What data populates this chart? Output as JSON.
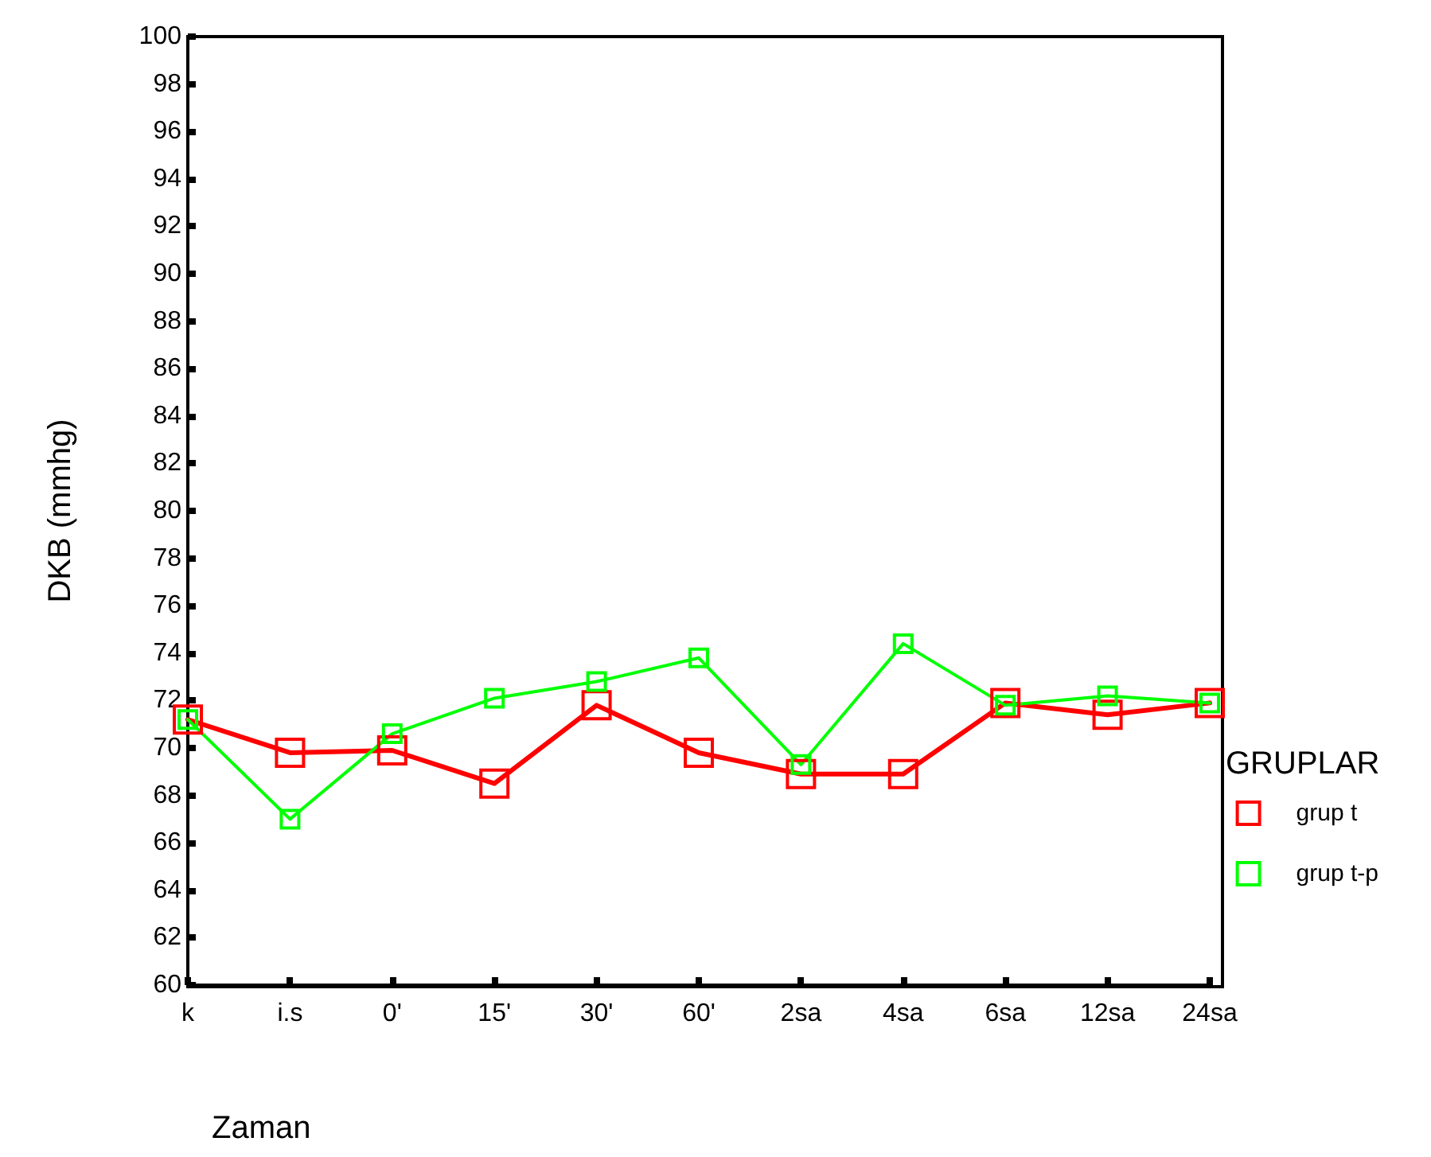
{
  "chart_data": {
    "type": "line",
    "xlabel": "Zaman",
    "ylabel": "DKB (mmhg)",
    "legend_title": "GRUPLAR",
    "categories": [
      "k",
      "i.s",
      "0'",
      "15'",
      "30'",
      "60'",
      "2sa",
      "4sa",
      "6sa",
      "12sa",
      "24sa"
    ],
    "series": [
      {
        "name": "grup t",
        "color": "#ff0000",
        "values": [
          71.2,
          69.8,
          69.9,
          68.5,
          71.8,
          69.8,
          68.9,
          68.9,
          71.9,
          71.4,
          71.9
        ]
      },
      {
        "name": "grup t-p",
        "color": "#00ff00",
        "values": [
          71.2,
          67.0,
          70.6,
          72.1,
          72.8,
          73.8,
          69.3,
          74.4,
          71.8,
          72.2,
          71.9
        ]
      }
    ],
    "ylim": [
      60,
      100
    ],
    "yticks": [
      60,
      62,
      64,
      66,
      68,
      70,
      72,
      74,
      76,
      78,
      80,
      82,
      84,
      86,
      88,
      90,
      92,
      94,
      96,
      98,
      100
    ],
    "grid": false,
    "legend": "right",
    "marker": "square",
    "line_style": "solid"
  }
}
